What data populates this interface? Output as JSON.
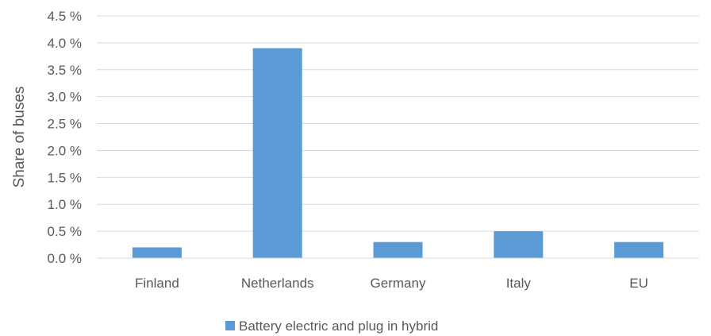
{
  "chart_data": {
    "type": "bar",
    "title": "",
    "xlabel": "",
    "ylabel": "Share of buses",
    "categories": [
      "Finland",
      "Netherlands",
      "Germany",
      "Italy",
      "EU"
    ],
    "series": [
      {
        "name": "Battery electric and plug in hybrid",
        "values": [
          0.2,
          3.9,
          0.3,
          0.5,
          0.3
        ],
        "color": "#5b9bd5"
      }
    ],
    "ylim": [
      0,
      4.5
    ],
    "yticks": [
      0,
      0.5,
      1.0,
      1.5,
      2.0,
      2.5,
      3.0,
      3.5,
      4.0,
      4.5
    ],
    "ytick_labels": [
      "0.0 %",
      "0.5 %",
      "1.0 %",
      "1.5 %",
      "2.0 %",
      "2.5 %",
      "3.0 %",
      "3.5 %",
      "4.0 %",
      "4.5 %"
    ],
    "grid": true,
    "legend_position": "bottom"
  }
}
